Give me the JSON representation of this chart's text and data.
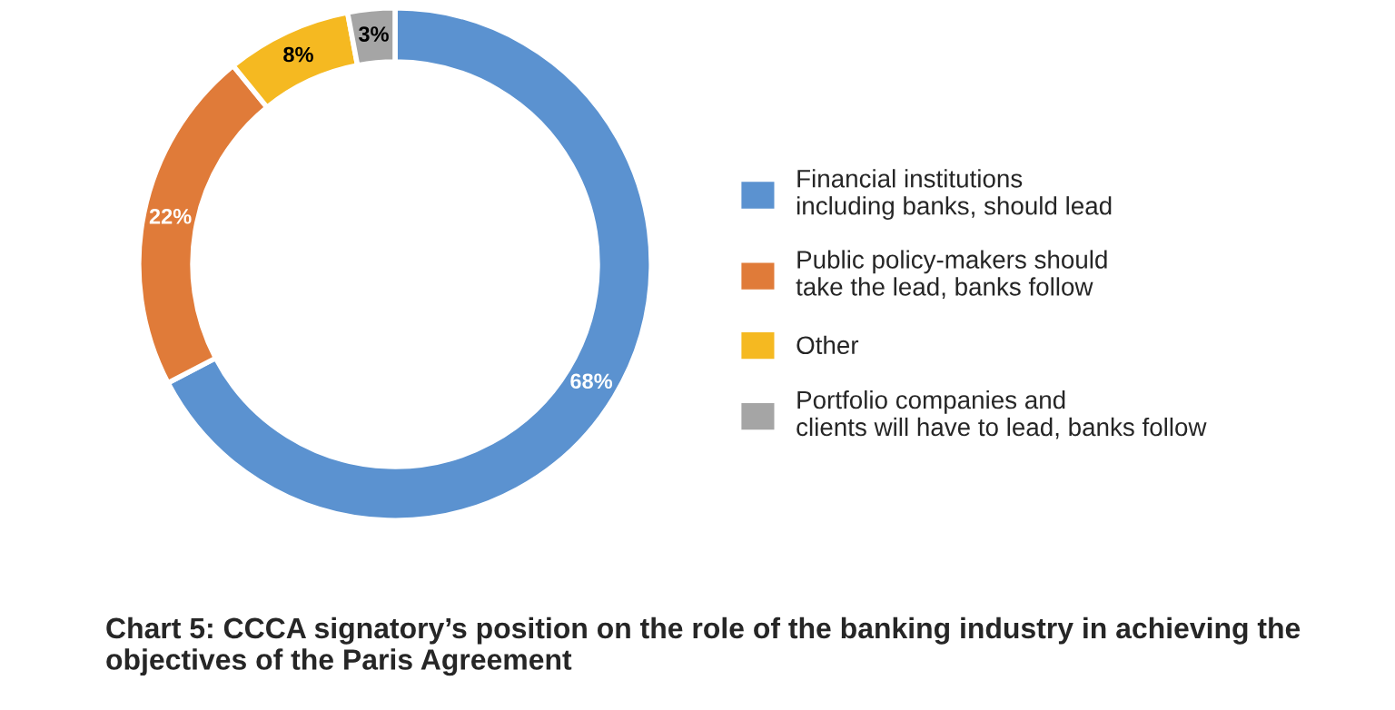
{
  "chart_data": {
    "type": "donut",
    "title": "Chart 5: CCCA signatory’s position on the role of the banking industry in achieving the objectives of the Paris Agreement",
    "categories": [
      "Financial institutions including banks, should lead",
      "Public policy-makers should take the lead, banks follow",
      "Other",
      "Portfolio companies and clients will have to lead, banks follow"
    ],
    "values": [
      68,
      22,
      8,
      3
    ],
    "colors": [
      "#5b92d0",
      "#e07b39",
      "#f5b921",
      "#a5a5a5"
    ],
    "value_labels": [
      "68%",
      "22%",
      "8%",
      "3%"
    ],
    "legend": "right"
  }
}
